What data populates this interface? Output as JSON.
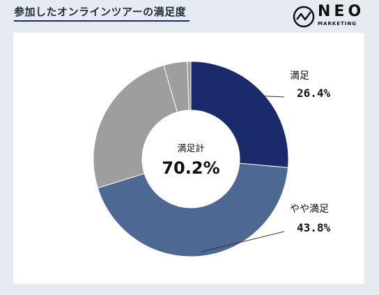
{
  "title": "参加したオンラインツアーの満足度",
  "logo": {
    "name": "NEO",
    "sub": "MARKETING",
    "icon": "trend-line-icon"
  },
  "chart_data": {
    "type": "pie",
    "style": "donut",
    "center_label": "満足計",
    "center_value": "70.2%",
    "slices": [
      {
        "label": "満足",
        "value": 26.4,
        "display": "26.4%",
        "color": "#1b2a6b"
      },
      {
        "label": "やや満足",
        "value": 43.8,
        "display": "43.8%",
        "color": "#4e6894"
      },
      {
        "label": "",
        "value": 25.3,
        "display": "",
        "color": "#9e9e9e"
      },
      {
        "label": "",
        "value": 3.9,
        "display": "",
        "color": "#9e9e9e"
      },
      {
        "label": "",
        "value": 0.6,
        "display": "",
        "color": "#9e9e9e"
      }
    ]
  }
}
